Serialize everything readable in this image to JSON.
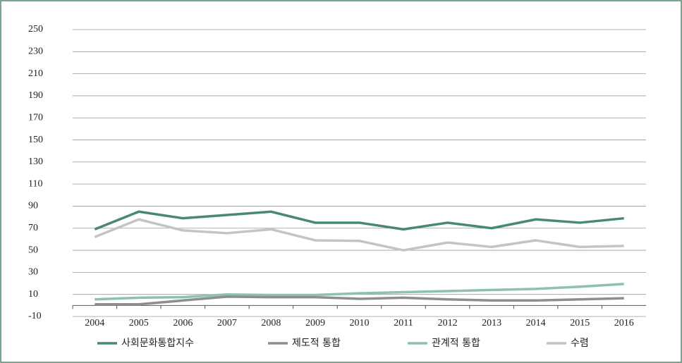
{
  "chart_data": {
    "type": "line",
    "categories": [
      "2004",
      "2005",
      "2006",
      "2007",
      "2008",
      "2009",
      "2010",
      "2011",
      "2012",
      "2013",
      "2014",
      "2015",
      "2016"
    ],
    "series": [
      {
        "name": "사회문화통합지수",
        "color": "#4a8a6c",
        "values": [
          69,
          85,
          79,
          82,
          85,
          75,
          75,
          69,
          75,
          70,
          78,
          75,
          79
        ]
      },
      {
        "name": "제도적 통합",
        "color": "#8e8e8e",
        "values": [
          1,
          1,
          4.5,
          8,
          7.5,
          7.5,
          6,
          7,
          5.5,
          4.5,
          4.5,
          5.5,
          6.5
        ]
      },
      {
        "name": "관계적 통합",
        "color": "#8fc2aa",
        "values": [
          5.5,
          7,
          7.5,
          10,
          9.5,
          9.5,
          11,
          12,
          13,
          14,
          15,
          17,
          19.5
        ]
      },
      {
        "name": "수렴",
        "color": "#c4c4c4",
        "values": [
          62,
          78,
          68,
          65.5,
          69,
          59,
          58.5,
          50,
          57,
          53,
          59,
          53,
          54
        ]
      }
    ],
    "ylim": [
      -10,
      250
    ],
    "yticks": [
      -10,
      10,
      30,
      50,
      70,
      90,
      110,
      130,
      150,
      170,
      190,
      210,
      230,
      250
    ],
    "grid": true,
    "legend": "bottom"
  }
}
